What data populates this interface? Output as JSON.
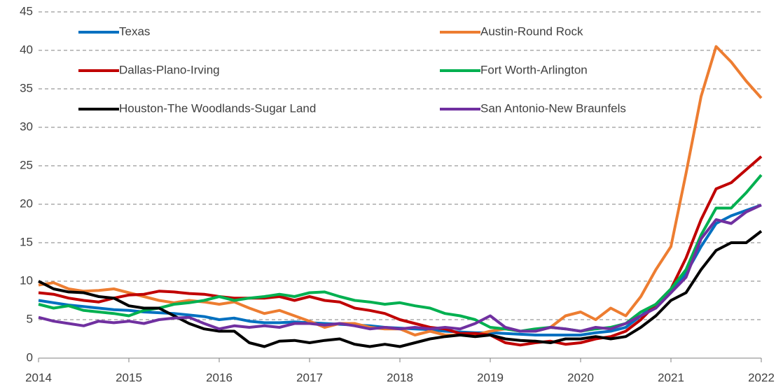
{
  "chart_data": {
    "type": "line",
    "x": [
      2014,
      2014.167,
      2014.333,
      2014.5,
      2014.667,
      2014.833,
      2015,
      2015.167,
      2015.333,
      2015.5,
      2015.667,
      2015.833,
      2016,
      2016.167,
      2016.333,
      2016.5,
      2016.667,
      2016.833,
      2017,
      2017.167,
      2017.333,
      2017.5,
      2017.667,
      2017.833,
      2018,
      2018.167,
      2018.333,
      2018.5,
      2018.667,
      2018.833,
      2019,
      2019.167,
      2019.333,
      2019.5,
      2019.667,
      2019.833,
      2020,
      2020.167,
      2020.333,
      2020.5,
      2020.667,
      2020.833,
      2021,
      2021.167,
      2021.333,
      2021.5,
      2021.667,
      2021.833,
      2022
    ],
    "series": [
      {
        "name": "Texas",
        "color": "#0070c0",
        "values": [
          7.5,
          7.2,
          6.9,
          6.7,
          6.5,
          6.3,
          6.2,
          6.0,
          5.9,
          5.8,
          5.6,
          5.4,
          5.0,
          5.2,
          4.8,
          4.6,
          4.6,
          4.7,
          4.6,
          4.5,
          4.4,
          4.3,
          4.2,
          4.0,
          3.9,
          3.8,
          3.7,
          3.5,
          3.4,
          3.3,
          3.3,
          3.2,
          3.1,
          3.0,
          3.0,
          3.0,
          3.0,
          3.3,
          3.5,
          4.0,
          5.5,
          7.0,
          8.5,
          11,
          14.5,
          17.5,
          18.5,
          19.2,
          19.9
        ]
      },
      {
        "name": "Austin-Round Rock",
        "color": "#ed7d31",
        "values": [
          9.5,
          9.8,
          9.0,
          8.7,
          8.8,
          9.0,
          8.5,
          8.0,
          7.5,
          7.2,
          7.5,
          7.3,
          7.0,
          7.3,
          6.5,
          5.8,
          6.2,
          5.5,
          4.8,
          4.0,
          4.5,
          4.5,
          4.0,
          3.8,
          3.8,
          3.0,
          3.5,
          3.0,
          3.0,
          3.0,
          3.5,
          3.8,
          3.5,
          3.5,
          4.0,
          5.5,
          6.0,
          5.0,
          6.5,
          5.5,
          8.0,
          11.5,
          14.5,
          24,
          34,
          40.5,
          38.5,
          36,
          33.8
        ]
      },
      {
        "name": "Dallas-Plano-Irving",
        "color": "#c00000",
        "values": [
          8.5,
          8.3,
          7.8,
          7.5,
          7.3,
          7.8,
          8.2,
          8.3,
          8.7,
          8.6,
          8.4,
          8.3,
          8.0,
          7.8,
          7.8,
          7.8,
          8.0,
          7.5,
          8.0,
          7.5,
          7.3,
          6.5,
          6.2,
          5.8,
          5.0,
          4.5,
          4.0,
          3.8,
          3.2,
          3.2,
          3.0,
          2.0,
          1.7,
          2.0,
          2.2,
          1.8,
          2.0,
          2.5,
          2.8,
          3.5,
          5.0,
          7.0,
          9.0,
          13,
          18,
          22,
          22.8,
          24.5,
          26.2
        ]
      },
      {
        "name": "Fort Worth-Arlington",
        "color": "#00b050",
        "values": [
          7.0,
          6.5,
          6.8,
          6.2,
          6.0,
          5.8,
          5.5,
          6.2,
          6.5,
          7.0,
          7.2,
          7.5,
          8.0,
          7.5,
          7.8,
          8.0,
          8.3,
          8.0,
          8.5,
          8.6,
          8.0,
          7.5,
          7.3,
          7.0,
          7.2,
          6.8,
          6.5,
          5.8,
          5.5,
          5.0,
          4.0,
          3.8,
          3.5,
          3.8,
          4.0,
          3.8,
          3.5,
          3.8,
          4.0,
          4.5,
          6.0,
          7.0,
          9.0,
          11.5,
          16,
          19.5,
          19.5,
          21.5,
          23.8
        ]
      },
      {
        "name": "Houston-The Woodlands-Sugar Land",
        "color": "#000000",
        "values": [
          10.0,
          9.0,
          8.6,
          8.5,
          8.0,
          7.8,
          6.8,
          6.5,
          6.5,
          5.5,
          4.5,
          3.8,
          3.5,
          3.5,
          2.0,
          1.5,
          2.2,
          2.3,
          2.0,
          2.3,
          2.5,
          1.8,
          1.5,
          1.8,
          1.5,
          2.0,
          2.5,
          2.8,
          3.0,
          2.8,
          3.0,
          2.5,
          2.3,
          2.2,
          2.0,
          2.5,
          2.5,
          2.8,
          2.5,
          2.8,
          4.0,
          5.5,
          7.5,
          8.5,
          11.5,
          14.0,
          15.0,
          15.0,
          16.5
        ]
      },
      {
        "name": "San Antonio-New Braunfels",
        "color": "#7030a0",
        "values": [
          5.3,
          4.8,
          4.5,
          4.2,
          4.8,
          4.6,
          4.8,
          4.5,
          5.0,
          5.2,
          5.3,
          4.5,
          3.8,
          4.2,
          4.0,
          4.2,
          4.0,
          4.5,
          4.5,
          4.3,
          4.5,
          4.2,
          3.8,
          4.0,
          3.8,
          4.0,
          3.8,
          4.0,
          3.8,
          4.5,
          5.5,
          4.0,
          3.5,
          3.5,
          4.0,
          3.8,
          3.5,
          4.0,
          3.8,
          4.5,
          5.5,
          6.5,
          8.5,
          10.5,
          15.5,
          18.0,
          17.5,
          19.0,
          19.9
        ]
      }
    ],
    "xlim": [
      2014,
      2022
    ],
    "xticks": [
      2014,
      2015,
      2016,
      2017,
      2018,
      2019,
      2020,
      2021,
      2022
    ],
    "ylim": [
      0,
      45
    ],
    "yticks": [
      0,
      5,
      10,
      15,
      20,
      25,
      30,
      35,
      40,
      45
    ],
    "grid": true
  }
}
